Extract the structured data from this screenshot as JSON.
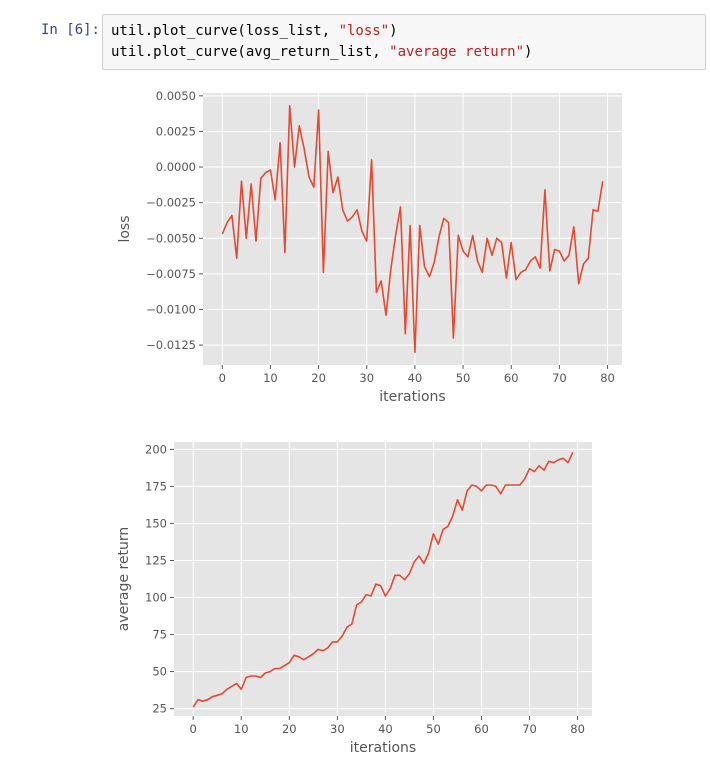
{
  "cell": {
    "prompt": "In [6]:",
    "line1": {
      "pre": "util.plot_curve(loss_list, ",
      "str": "\"loss\"",
      "post": ")"
    },
    "line2": {
      "pre": "util.plot_curve(avg_return_list, ",
      "str": "\"average return\"",
      "post": ")"
    }
  },
  "style": {
    "plot_bg": "#e5e5e5",
    "grid": "#ffffff",
    "line": "#e24a33",
    "text": "#555555",
    "prompt": "#303f9f",
    "string": "#ba2121"
  },
  "chart_data": [
    {
      "type": "line",
      "title": "",
      "xlabel": "iterations",
      "ylabel": "loss",
      "grid": true,
      "xlim": [
        -4,
        83
      ],
      "ylim": [
        -0.0139,
        0.0052
      ],
      "xticks": [
        0,
        10,
        20,
        30,
        40,
        50,
        60,
        70,
        80
      ],
      "xtick_labels": [
        "0",
        "10",
        "20",
        "30",
        "40",
        "50",
        "60",
        "70",
        "80"
      ],
      "yticks": [
        0.005,
        0.0025,
        0.0,
        -0.0025,
        -0.005,
        -0.0075,
        -0.01,
        -0.0125
      ],
      "ytick_labels": [
        "0.0050",
        "0.0025",
        "0.0000",
        "−0.0025",
        "−0.0050",
        "−0.0075",
        "−0.0100",
        "−0.0125"
      ],
      "x": [
        0,
        1,
        2,
        3,
        4,
        5,
        6,
        7,
        8,
        9,
        10,
        11,
        12,
        13,
        14,
        15,
        16,
        17,
        18,
        19,
        20,
        21,
        22,
        23,
        24,
        25,
        26,
        27,
        28,
        29,
        30,
        31,
        32,
        33,
        34,
        35,
        36,
        37,
        38,
        39,
        40,
        41,
        42,
        43,
        44,
        45,
        46,
        47,
        48,
        49,
        50,
        51,
        52,
        53,
        54,
        55,
        56,
        57,
        58,
        59,
        60,
        61,
        62,
        63,
        64,
        65,
        66,
        67,
        68,
        69,
        70,
        71,
        72,
        73,
        74,
        75,
        76,
        77,
        78,
        79
      ],
      "y": [
        -0.0047,
        -0.0039,
        -0.0034,
        -0.0064,
        -0.001,
        -0.005,
        -0.0012,
        -0.0052,
        -0.0008,
        -0.0004,
        -0.0002,
        -0.0023,
        0.0017,
        -0.006,
        0.0043,
        0.0,
        0.0029,
        0.0013,
        -0.0007,
        -0.0014,
        0.004,
        -0.0074,
        0.0011,
        -0.0018,
        -0.0007,
        -0.003,
        -0.0038,
        -0.0035,
        -0.003,
        -0.0045,
        -0.0052,
        0.0005,
        -0.0088,
        -0.008,
        -0.0104,
        -0.0072,
        -0.0048,
        -0.0028,
        -0.0117,
        -0.0041,
        -0.013,
        -0.0041,
        -0.007,
        -0.0077,
        -0.0067,
        -0.0049,
        -0.0036,
        -0.0039,
        -0.012,
        -0.0048,
        -0.0059,
        -0.0063,
        -0.0048,
        -0.0066,
        -0.0074,
        -0.005,
        -0.0062,
        -0.005,
        -0.0053,
        -0.0078,
        -0.0053,
        -0.0079,
        -0.0074,
        -0.0072,
        -0.0066,
        -0.0063,
        -0.0071,
        -0.0016,
        -0.0073,
        -0.0058,
        -0.0059,
        -0.0066,
        -0.0062,
        -0.0042,
        -0.0082,
        -0.0068,
        -0.0064,
        -0.003,
        -0.0031,
        -0.001
      ]
    },
    {
      "type": "line",
      "title": "",
      "xlabel": "iterations",
      "ylabel": "average return",
      "grid": true,
      "xlim": [
        -4,
        83
      ],
      "ylim": [
        20,
        205
      ],
      "xticks": [
        0,
        10,
        20,
        30,
        40,
        50,
        60,
        70,
        80
      ],
      "xtick_labels": [
        "0",
        "10",
        "20",
        "30",
        "40",
        "50",
        "60",
        "70",
        "80"
      ],
      "yticks": [
        200,
        175,
        150,
        125,
        100,
        75,
        50,
        25
      ],
      "ytick_labels": [
        "200",
        "175",
        "150",
        "125",
        "100",
        "75",
        "50",
        "25"
      ],
      "x": [
        0,
        1,
        2,
        3,
        4,
        5,
        6,
        7,
        8,
        9,
        10,
        11,
        12,
        13,
        14,
        15,
        16,
        17,
        18,
        19,
        20,
        21,
        22,
        23,
        24,
        25,
        26,
        27,
        28,
        29,
        30,
        31,
        32,
        33,
        34,
        35,
        36,
        37,
        38,
        39,
        40,
        41,
        42,
        43,
        44,
        45,
        46,
        47,
        48,
        49,
        50,
        51,
        52,
        53,
        54,
        55,
        56,
        57,
        58,
        59,
        60,
        61,
        62,
        63,
        64,
        65,
        66,
        67,
        68,
        69,
        70,
        71,
        72,
        73,
        74,
        75,
        76,
        77,
        78,
        79
      ],
      "y": [
        26,
        31,
        30,
        31,
        33,
        34,
        35,
        38,
        40,
        42,
        38,
        46,
        47,
        47,
        46,
        49,
        50,
        52,
        52,
        54,
        56,
        61,
        60,
        58,
        60,
        62,
        65,
        64,
        66,
        70,
        70,
        74,
        80,
        82,
        95,
        97,
        102,
        101,
        109,
        108,
        101,
        106,
        115,
        115,
        112,
        116,
        124,
        128,
        123,
        130,
        143,
        136,
        146,
        148,
        155,
        166,
        159,
        172,
        176,
        175,
        172,
        176,
        176,
        175,
        170,
        176,
        176,
        176,
        176,
        180,
        187,
        185,
        189,
        186,
        192,
        191,
        193,
        194,
        191,
        198
      ]
    }
  ]
}
